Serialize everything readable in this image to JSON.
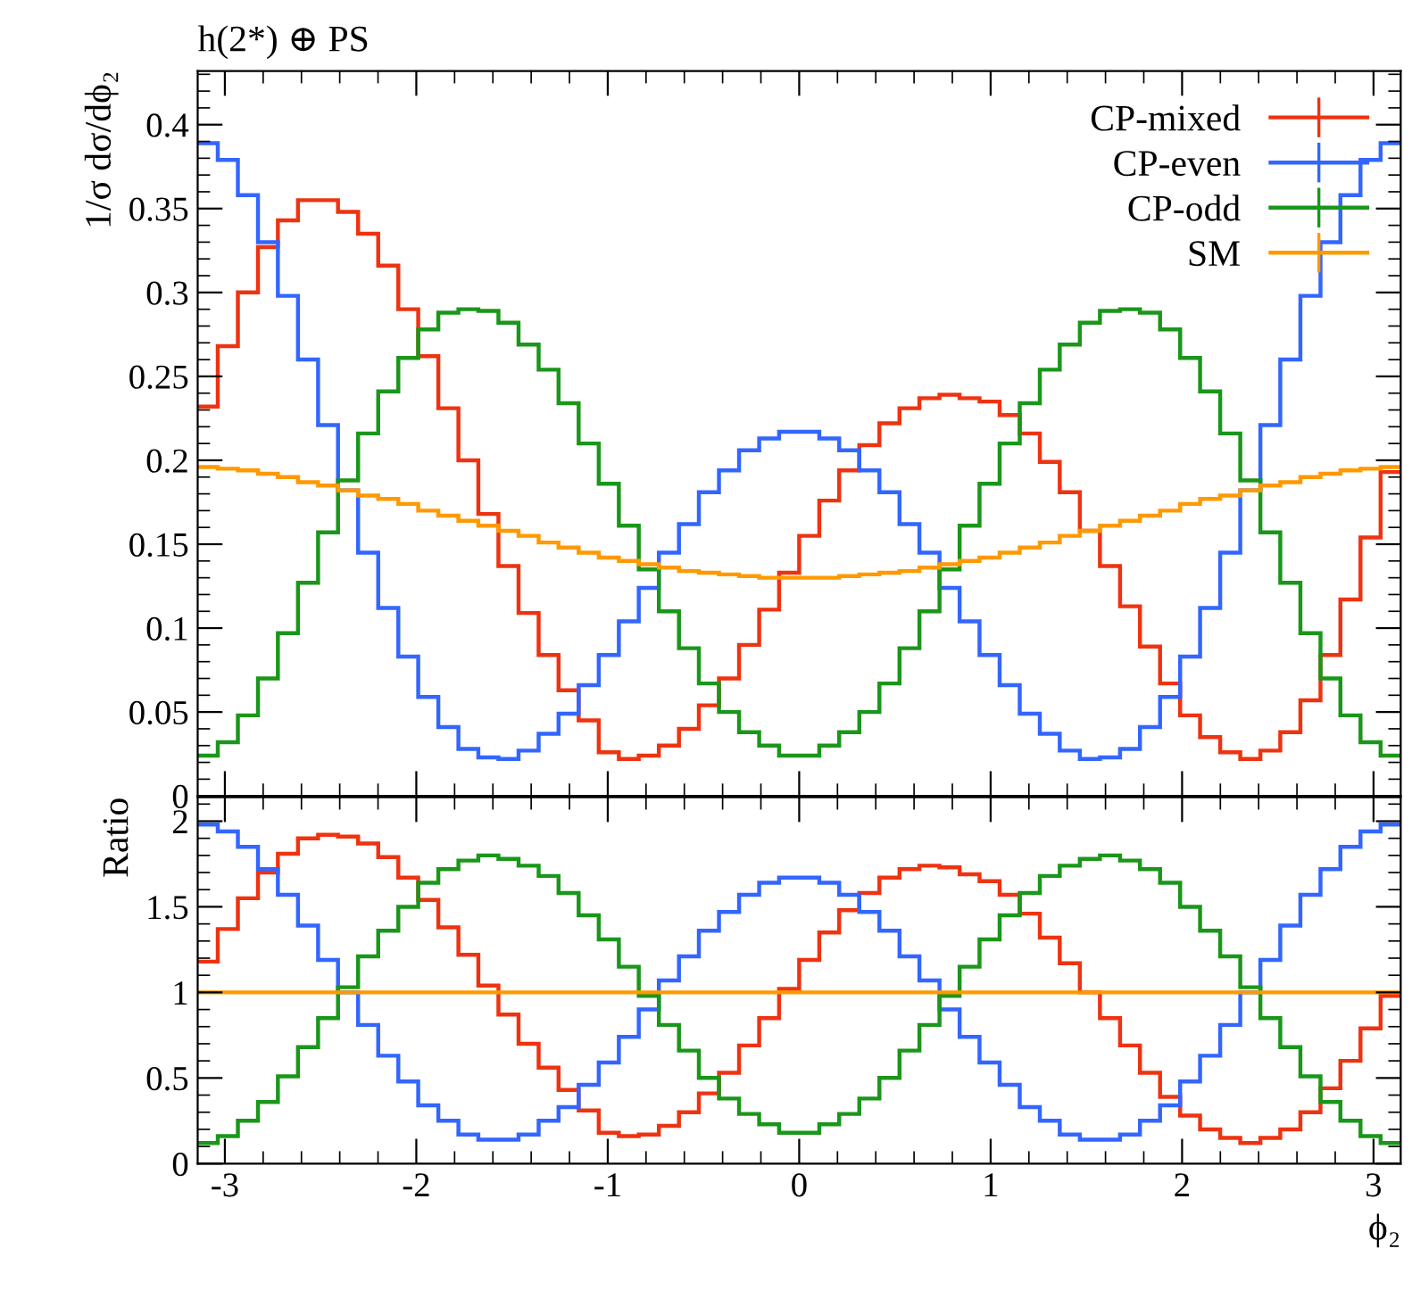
{
  "chart_data": [
    {
      "type": "histogram",
      "title": "h(2*) ⊕ PS",
      "ylabel": "1/σ dσ/dϕ₂",
      "bins": [
        -3.142,
        -3.037,
        -2.932,
        -2.827,
        -2.723,
        -2.618,
        -2.513,
        -2.409,
        -2.304,
        -2.199,
        -2.094,
        -1.99,
        -1.885,
        -1.78,
        -1.676,
        -1.571,
        -1.466,
        -1.361,
        -1.257,
        -1.152,
        -1.047,
        -0.942,
        -0.838,
        -0.733,
        -0.628,
        -0.524,
        -0.419,
        -0.314,
        -0.209,
        -0.105,
        0,
        0.105,
        0.209,
        0.314,
        0.419,
        0.524,
        0.628,
        0.733,
        0.838,
        0.942,
        1.047,
        1.152,
        1.257,
        1.361,
        1.466,
        1.571,
        1.676,
        1.78,
        1.885,
        1.99,
        2.094,
        2.199,
        2.304,
        2.409,
        2.513,
        2.618,
        2.723,
        2.827,
        2.932,
        3.037,
        3.142
      ],
      "series": [
        {
          "name": "CP-mixed",
          "color": "#ee3311",
          "values": [
            0.232,
            0.268,
            0.3,
            0.327,
            0.343,
            0.355,
            0.355,
            0.348,
            0.335,
            0.316,
            0.29,
            0.262,
            0.231,
            0.2,
            0.168,
            0.137,
            0.109,
            0.084,
            0.063,
            0.045,
            0.026,
            0.022,
            0.024,
            0.03,
            0.04,
            0.054,
            0.07,
            0.09,
            0.111,
            0.133,
            0.155,
            0.176,
            0.194,
            0.209,
            0.222,
            0.231,
            0.237,
            0.239,
            0.237,
            0.235,
            0.227,
            0.216,
            0.199,
            0.181,
            0.158,
            0.137,
            0.113,
            0.089,
            0.067,
            0.048,
            0.035,
            0.026,
            0.022,
            0.027,
            0.038,
            0.057,
            0.084,
            0.117,
            0.154,
            0.193
          ]
        },
        {
          "name": "CP-even",
          "color": "#3366ff",
          "values": [
            0.389,
            0.379,
            0.358,
            0.33,
            0.298,
            0.26,
            0.221,
            0.182,
            0.145,
            0.112,
            0.083,
            0.059,
            0.041,
            0.028,
            0.023,
            0.022,
            0.027,
            0.037,
            0.049,
            0.066,
            0.084,
            0.104,
            0.124,
            0.145,
            0.162,
            0.181,
            0.194,
            0.206,
            0.213,
            0.217,
            0.217,
            0.213,
            0.206,
            0.194,
            0.181,
            0.162,
            0.145,
            0.124,
            0.104,
            0.084,
            0.066,
            0.049,
            0.037,
            0.027,
            0.022,
            0.023,
            0.028,
            0.041,
            0.059,
            0.083,
            0.112,
            0.145,
            0.182,
            0.221,
            0.26,
            0.298,
            0.33,
            0.358,
            0.379,
            0.389
          ]
        },
        {
          "name": "CP-odd",
          "color": "#1a961a",
          "values": [
            0.024,
            0.032,
            0.048,
            0.07,
            0.097,
            0.127,
            0.157,
            0.188,
            0.216,
            0.241,
            0.261,
            0.278,
            0.288,
            0.29,
            0.289,
            0.282,
            0.269,
            0.254,
            0.234,
            0.21,
            0.186,
            0.161,
            0.135,
            0.11,
            0.088,
            0.067,
            0.05,
            0.038,
            0.03,
            0.024,
            0.024,
            0.03,
            0.038,
            0.05,
            0.067,
            0.088,
            0.11,
            0.135,
            0.161,
            0.186,
            0.21,
            0.234,
            0.254,
            0.269,
            0.282,
            0.289,
            0.29,
            0.288,
            0.278,
            0.261,
            0.241,
            0.216,
            0.188,
            0.157,
            0.127,
            0.097,
            0.07,
            0.048,
            0.032,
            0.024
          ]
        },
        {
          "name": "SM",
          "color": "#ff9900",
          "values": [
            0.196,
            0.195,
            0.194,
            0.192,
            0.19,
            0.187,
            0.185,
            0.182,
            0.179,
            0.177,
            0.174,
            0.17,
            0.167,
            0.164,
            0.161,
            0.158,
            0.155,
            0.151,
            0.148,
            0.145,
            0.142,
            0.14,
            0.138,
            0.136,
            0.134,
            0.133,
            0.132,
            0.131,
            0.13,
            0.13,
            0.13,
            0.13,
            0.131,
            0.132,
            0.133,
            0.134,
            0.136,
            0.138,
            0.14,
            0.142,
            0.145,
            0.148,
            0.151,
            0.155,
            0.158,
            0.161,
            0.164,
            0.167,
            0.17,
            0.174,
            0.177,
            0.179,
            0.182,
            0.185,
            0.187,
            0.19,
            0.192,
            0.194,
            0.195,
            0.196
          ]
        }
      ],
      "xlim": [
        -3.142,
        3.142
      ],
      "xticks": [
        -3,
        -2,
        -1,
        0,
        1,
        2,
        3
      ],
      "ylim": [
        0,
        0.432
      ],
      "yticks": [
        0,
        0.05,
        0.1,
        0.15,
        0.2,
        0.25,
        0.3,
        0.35,
        0.4
      ],
      "tick_labels": "y",
      "legend": "top right"
    },
    {
      "type": "histogram",
      "ylabel": "Ratio",
      "xlabel": "ϕ₂",
      "bins": [
        -3.142,
        -3.037,
        -2.932,
        -2.827,
        -2.723,
        -2.618,
        -2.513,
        -2.409,
        -2.304,
        -2.199,
        -2.094,
        -1.99,
        -1.885,
        -1.78,
        -1.676,
        -1.571,
        -1.466,
        -1.361,
        -1.257,
        -1.152,
        -1.047,
        -0.942,
        -0.838,
        -0.733,
        -0.628,
        -0.524,
        -0.419,
        -0.314,
        -0.209,
        -0.105,
        0,
        0.105,
        0.209,
        0.314,
        0.419,
        0.524,
        0.628,
        0.733,
        0.838,
        0.942,
        1.047,
        1.152,
        1.257,
        1.361,
        1.466,
        1.571,
        1.676,
        1.78,
        1.885,
        1.99,
        2.094,
        2.199,
        2.304,
        2.409,
        2.513,
        2.618,
        2.723,
        2.827,
        2.932,
        3.037,
        3.142
      ],
      "series": [
        {
          "color": "#ee3311",
          "values": [
            1.18,
            1.37,
            1.55,
            1.7,
            1.81,
            1.9,
            1.92,
            1.91,
            1.87,
            1.79,
            1.67,
            1.54,
            1.38,
            1.22,
            1.04,
            0.87,
            0.7,
            0.56,
            0.43,
            0.31,
            0.18,
            0.16,
            0.17,
            0.22,
            0.3,
            0.41,
            0.53,
            0.69,
            0.85,
            1.02,
            1.19,
            1.35,
            1.48,
            1.58,
            1.67,
            1.72,
            1.74,
            1.73,
            1.69,
            1.65,
            1.57,
            1.46,
            1.32,
            1.17,
            1.0,
            0.85,
            0.69,
            0.53,
            0.39,
            0.28,
            0.2,
            0.15,
            0.12,
            0.15,
            0.2,
            0.3,
            0.44,
            0.6,
            0.79,
            0.98
          ]
        },
        {
          "color": "#3366ff",
          "values": [
            1.98,
            1.94,
            1.85,
            1.72,
            1.57,
            1.39,
            1.19,
            1.0,
            0.81,
            0.63,
            0.48,
            0.34,
            0.25,
            0.17,
            0.14,
            0.14,
            0.17,
            0.25,
            0.33,
            0.46,
            0.59,
            0.74,
            0.9,
            1.07,
            1.21,
            1.36,
            1.47,
            1.57,
            1.64,
            1.67,
            1.67,
            1.64,
            1.57,
            1.47,
            1.36,
            1.21,
            1.07,
            0.9,
            0.74,
            0.59,
            0.46,
            0.33,
            0.25,
            0.17,
            0.14,
            0.14,
            0.17,
            0.25,
            0.34,
            0.48,
            0.63,
            0.81,
            1.0,
            1.19,
            1.39,
            1.57,
            1.72,
            1.85,
            1.94,
            1.98
          ]
        },
        {
          "color": "#1a961a",
          "values": [
            0.12,
            0.16,
            0.25,
            0.36,
            0.51,
            0.68,
            0.85,
            1.03,
            1.21,
            1.36,
            1.5,
            1.64,
            1.72,
            1.77,
            1.8,
            1.78,
            1.74,
            1.68,
            1.58,
            1.45,
            1.31,
            1.15,
            0.98,
            0.81,
            0.66,
            0.5,
            0.38,
            0.29,
            0.23,
            0.18,
            0.18,
            0.23,
            0.29,
            0.38,
            0.5,
            0.66,
            0.81,
            0.98,
            1.15,
            1.31,
            1.45,
            1.58,
            1.68,
            1.74,
            1.78,
            1.8,
            1.77,
            1.72,
            1.64,
            1.5,
            1.36,
            1.21,
            1.03,
            0.85,
            0.68,
            0.51,
            0.36,
            0.25,
            0.16,
            0.12
          ]
        },
        {
          "color": "#ff9900",
          "values": [
            1,
            1,
            1,
            1,
            1,
            1,
            1,
            1,
            1,
            1,
            1,
            1,
            1,
            1,
            1,
            1,
            1,
            1,
            1,
            1,
            1,
            1,
            1,
            1,
            1,
            1,
            1,
            1,
            1,
            1,
            1,
            1,
            1,
            1,
            1,
            1,
            1,
            1,
            1,
            1,
            1,
            1,
            1,
            1,
            1,
            1,
            1,
            1,
            1,
            1,
            1,
            1,
            1,
            1,
            1,
            1,
            1,
            1,
            1,
            1
          ]
        }
      ],
      "xlim": [
        -3.142,
        3.142
      ],
      "xticks": [
        -3,
        -2,
        -1,
        0,
        1,
        2,
        3
      ],
      "ylim": [
        0,
        2.14
      ],
      "yticks": [
        0,
        0.5,
        1,
        1.5,
        2
      ]
    }
  ]
}
